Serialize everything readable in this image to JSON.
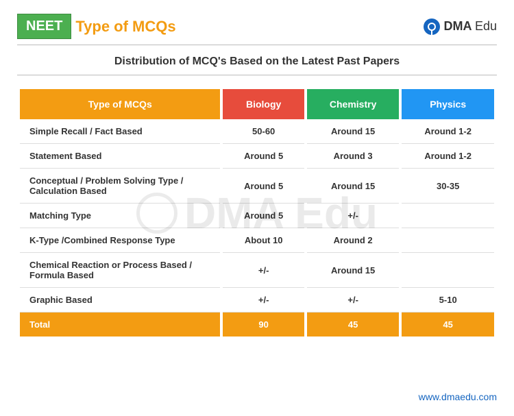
{
  "header": {
    "badge": "NEET",
    "title": "Type of MCQs",
    "logo_brand": "DMA",
    "logo_sub": "Edu"
  },
  "subtitle": "Distribution of MCQ's Based on the Latest Past Papers",
  "table": {
    "columns": [
      {
        "label": "Type of MCQs",
        "bg": "#f39c12"
      },
      {
        "label": "Biology",
        "bg": "#e74c3c"
      },
      {
        "label": "Chemistry",
        "bg": "#27ae60"
      },
      {
        "label": "Physics",
        "bg": "#2196f3"
      }
    ],
    "rows": [
      {
        "type": "Simple Recall / Fact Based",
        "biology": "50-60",
        "chemistry": "Around 15",
        "physics": "Around 1-2"
      },
      {
        "type": "Statement Based",
        "biology": "Around 5",
        "chemistry": "Around 3",
        "physics": "Around 1-2"
      },
      {
        "type": "Conceptual / Problem Solving Type / Calculation Based",
        "biology": "Around 5",
        "chemistry": "Around 15",
        "physics": "30-35"
      },
      {
        "type": "Matching Type",
        "biology": "Around 5",
        "chemistry": "+/-",
        "physics": ""
      },
      {
        "type": "K-Type /Combined Response Type",
        "biology": "About 10",
        "chemistry": "Around 2",
        "physics": ""
      },
      {
        "type": "Chemical Reaction or Process Based / Formula Based",
        "biology": "+/-",
        "chemistry": "Around 15",
        "physics": ""
      },
      {
        "type": "Graphic Based",
        "biology": "+/-",
        "chemistry": "+/-",
        "physics": "5-10"
      }
    ],
    "total": {
      "label": "Total",
      "biology": "90",
      "chemistry": "45",
      "physics": "45"
    }
  },
  "watermark": "DMA Edu",
  "footer_url": "www.dmaedu.com",
  "colors": {
    "orange": "#f39c12",
    "red": "#e74c3c",
    "green": "#27ae60",
    "blue": "#2196f3",
    "badge_green": "#4caf50",
    "link_blue": "#1565c0",
    "divider": "#bbbbbb",
    "row_border": "#dddddd"
  }
}
